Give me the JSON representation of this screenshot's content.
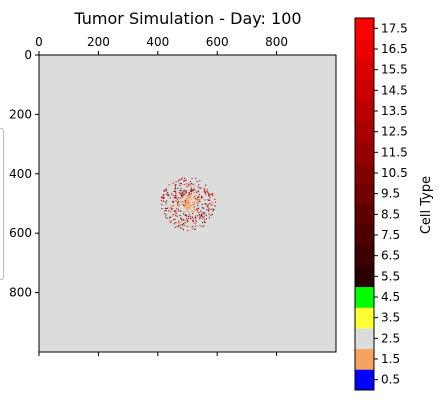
{
  "chart_data": {
    "type": "heatmap",
    "title": "Tumor Simulation - Day: 100",
    "x_ticks": [
      0,
      200,
      400,
      600,
      800
    ],
    "y_ticks": [
      0,
      200,
      400,
      600,
      800
    ],
    "xlim": [
      0,
      1000
    ],
    "ylim": [
      1000,
      0
    ],
    "x_axis_position": "top",
    "background_cell_type": 2,
    "background_color": "#dcdcdc",
    "tumor_center": [
      500,
      500
    ],
    "tumor_radius_approx": 90,
    "colorbar": {
      "label": "Cell Type",
      "range": [
        0,
        18
      ],
      "tick_labels": [
        "0.5",
        "1.5",
        "2.5",
        "3.5",
        "4.5",
        "5.5",
        "6.5",
        "7.5",
        "8.5",
        "9.5",
        "10.5",
        "11.5",
        "12.5",
        "13.5",
        "14.5",
        "15.5",
        "16.5",
        "17.5"
      ],
      "discrete_colors": [
        "#0000ff",
        "#f4a460",
        "#dcdcdc",
        "#ffff33",
        "#00ff00"
      ],
      "gradient_from": "#2a0000",
      "gradient_to": "#ff0000"
    },
    "cell_types_present_in_tumor": [
      1,
      5,
      6,
      7,
      8,
      9,
      10,
      11,
      12,
      13,
      14,
      15,
      16,
      17
    ]
  }
}
